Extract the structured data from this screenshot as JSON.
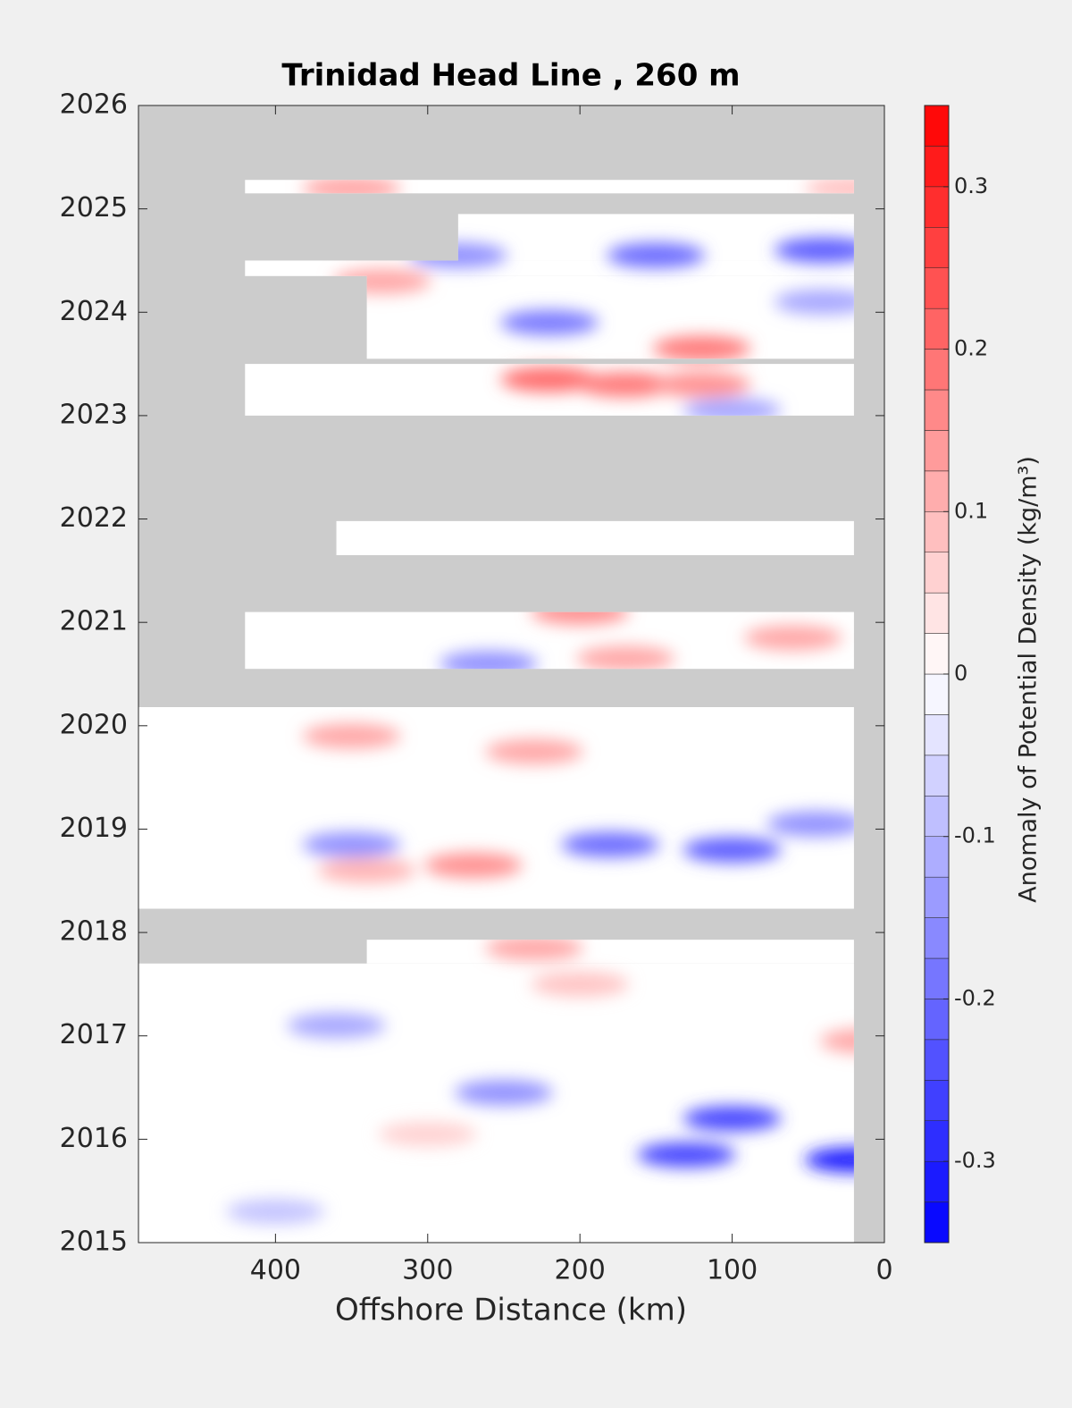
{
  "chart_data": {
    "type": "contour",
    "title": "Trinidad Head Line , 260 m",
    "xlabel": "Offshore Distance (km)",
    "colorbar_label": "Anomaly of Potential Density (kg/m³)",
    "xlim": [
      490,
      0
    ],
    "xticks": [
      400,
      300,
      200,
      100,
      0
    ],
    "ylim": [
      2015,
      2026
    ],
    "yticks": [
      2015,
      2016,
      2017,
      2018,
      2019,
      2020,
      2021,
      2022,
      2023,
      2024,
      2025,
      2026
    ],
    "clim": [
      -0.35,
      0.35
    ],
    "cticks": [
      -0.3,
      -0.2,
      -0.1,
      0,
      0.1,
      0.2,
      0.3
    ],
    "ncolors": 28,
    "cmap": [
      "#0000ff",
      "#ffffff",
      "#ff0000"
    ],
    "missing_color": "#cccccc",
    "data_coverage": [
      {
        "x": [
          490,
          20
        ],
        "y": [
          2015,
          2017.7
        ]
      },
      {
        "x": [
          340,
          20
        ],
        "y": [
          2017.7,
          2017.93
        ]
      },
      {
        "x": [
          490,
          20
        ],
        "y": [
          2018.23,
          2020.18
        ]
      },
      {
        "x": [
          420,
          20
        ],
        "y": [
          2020.55,
          2021.1
        ]
      },
      {
        "x": [
          360,
          20
        ],
        "y": [
          2021.65,
          2021.98
        ]
      },
      {
        "x": [
          420,
          20
        ],
        "y": [
          2023.0,
          2023.5
        ]
      },
      {
        "x": [
          340,
          20
        ],
        "y": [
          2023.55,
          2024.35
        ]
      },
      {
        "x": [
          420,
          20
        ],
        "y": [
          2024.35,
          2024.5
        ]
      },
      {
        "x": [
          280,
          20
        ],
        "y": [
          2024.5,
          2024.95
        ]
      },
      {
        "x": [
          420,
          20
        ],
        "y": [
          2025.15,
          2025.28
        ]
      }
    ],
    "features": {
      "x": [
        180,
        100,
        130,
        100,
        20,
        150,
        40,
        280,
        220,
        350,
        45,
        360,
        250,
        400,
        260,
        40,
        100,
        220,
        170,
        120,
        330,
        350,
        200,
        170,
        60,
        350,
        230,
        270,
        340,
        10,
        230,
        120,
        200,
        300,
        20
      ],
      "y": [
        2018.85,
        2018.8,
        2015.85,
        2016.2,
        2015.8,
        2024.55,
        2024.6,
        2024.55,
        2023.9,
        2018.85,
        2019.05,
        2017.1,
        2016.45,
        2015.3,
        2020.6,
        2024.1,
        2023.05,
        2023.35,
        2023.3,
        2023.65,
        2024.3,
        2025.2,
        2021.1,
        2020.65,
        2020.85,
        2019.9,
        2019.75,
        2018.65,
        2018.6,
        2016.95,
        2017.85,
        2023.3,
        2017.5,
        2016.05,
        2025.2
      ],
      "values": [
        -0.2,
        -0.22,
        -0.25,
        -0.25,
        -0.3,
        -0.2,
        -0.22,
        -0.15,
        -0.18,
        -0.15,
        -0.15,
        -0.12,
        -0.15,
        -0.08,
        -0.15,
        -0.12,
        -0.12,
        0.2,
        0.18,
        0.18,
        0.12,
        0.12,
        0.15,
        0.12,
        0.12,
        0.12,
        0.12,
        0.15,
        0.1,
        0.12,
        0.12,
        0.15,
        0.08,
        0.06,
        0.08
      ]
    }
  }
}
